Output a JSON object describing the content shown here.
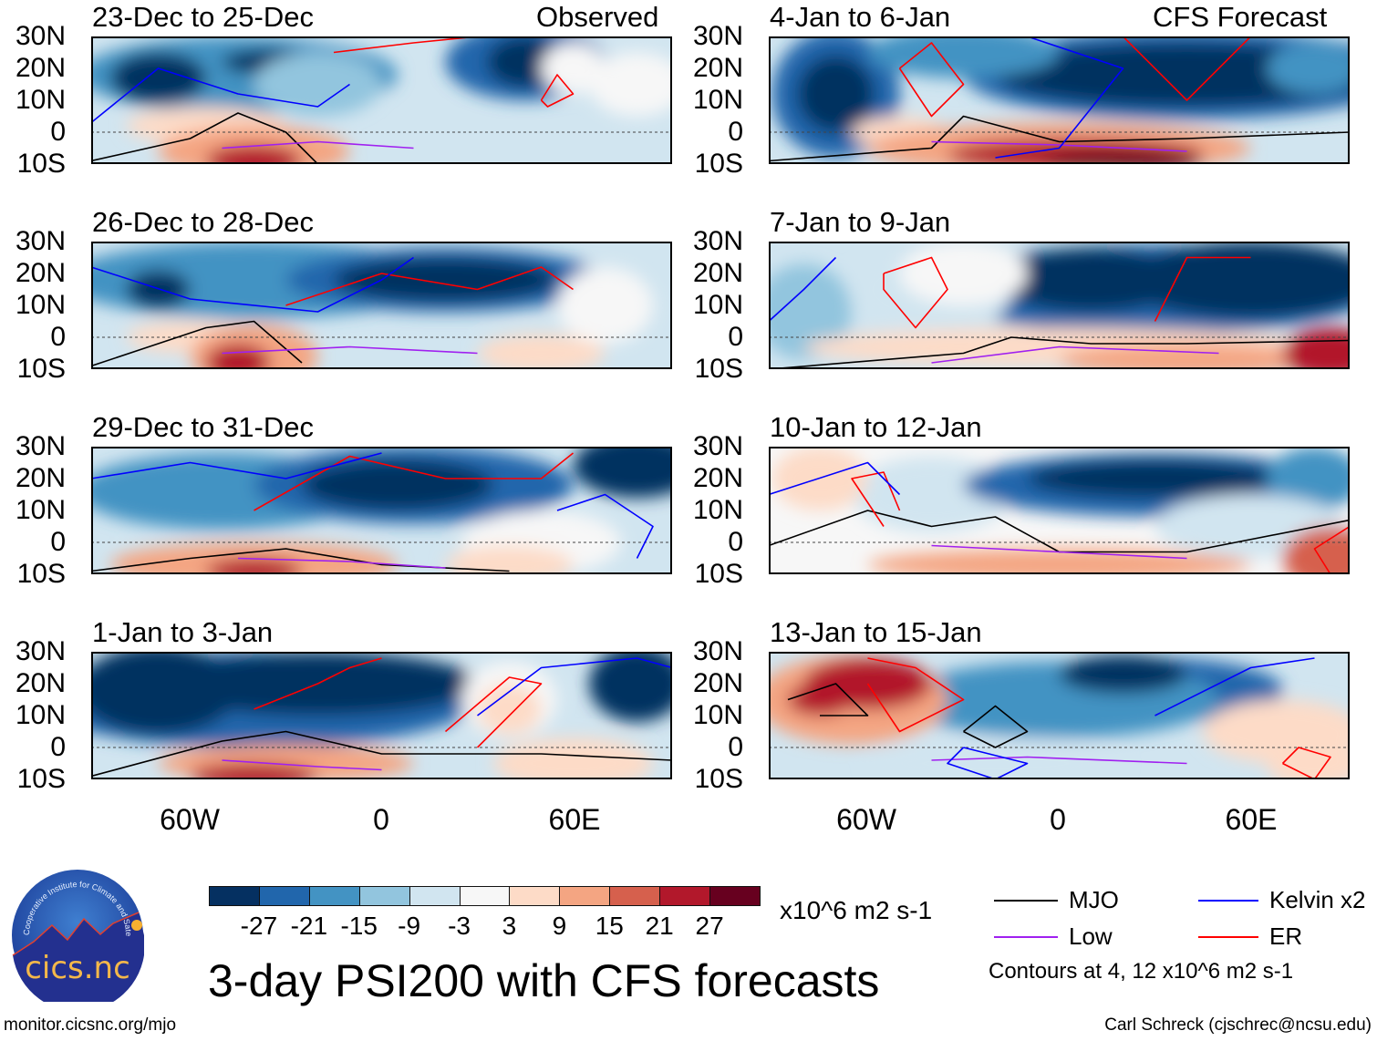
{
  "figure_title": "3-day PSI200 with CFS forecasts",
  "headers": {
    "left": "Observed",
    "right": "CFS Forecast"
  },
  "panels": [
    {
      "period": "23-Dec to 25-Dec",
      "type": "observed"
    },
    {
      "period": "26-Dec to 28-Dec",
      "type": "observed"
    },
    {
      "period": "29-Dec to 31-Dec",
      "type": "observed"
    },
    {
      "period": "1-Jan to 3-Jan",
      "type": "observed"
    },
    {
      "period": "4-Jan to 6-Jan",
      "type": "forecast"
    },
    {
      "period": "7-Jan to 9-Jan",
      "type": "forecast"
    },
    {
      "period": "10-Jan to 12-Jan",
      "type": "forecast"
    },
    {
      "period": "13-Jan to 15-Jan",
      "type": "forecast"
    }
  ],
  "lat_labels": [
    "30N",
    "20N",
    "10N",
    "0",
    "10S"
  ],
  "lon_labels": [
    "60W",
    "0",
    "60E"
  ],
  "colorbar": {
    "labels": [
      "-27",
      "-21",
      "-15",
      "-9",
      "-3",
      "3",
      "9",
      "15",
      "21",
      "27"
    ],
    "colors": [
      "#053061",
      "#2166ac",
      "#4393c3",
      "#92c5de",
      "#d1e5f0",
      "#f7f7f7",
      "#fddbc7",
      "#f4a582",
      "#d6604d",
      "#b2182b",
      "#67001f"
    ],
    "units": "x10^6 m2 s-1"
  },
  "legend": {
    "items": [
      {
        "label": "MJO",
        "color": "#000000"
      },
      {
        "label": "Kelvin x2",
        "color": "#0000ff"
      },
      {
        "label": "Low",
        "color": "#a020f0"
      },
      {
        "label": "ER",
        "color": "#ff0000"
      }
    ],
    "note": "Contours at 4, 12 x10^6 m2 s-1"
  },
  "logo": {
    "text": "cics.nc",
    "ring_text": "Cooperative Institute for Climate and Satellites"
  },
  "footer": {
    "url": "monitor.cicsnc.org/mjo",
    "credit": "Carl Schreck (cjschrec@ncsu.edu)"
  }
}
